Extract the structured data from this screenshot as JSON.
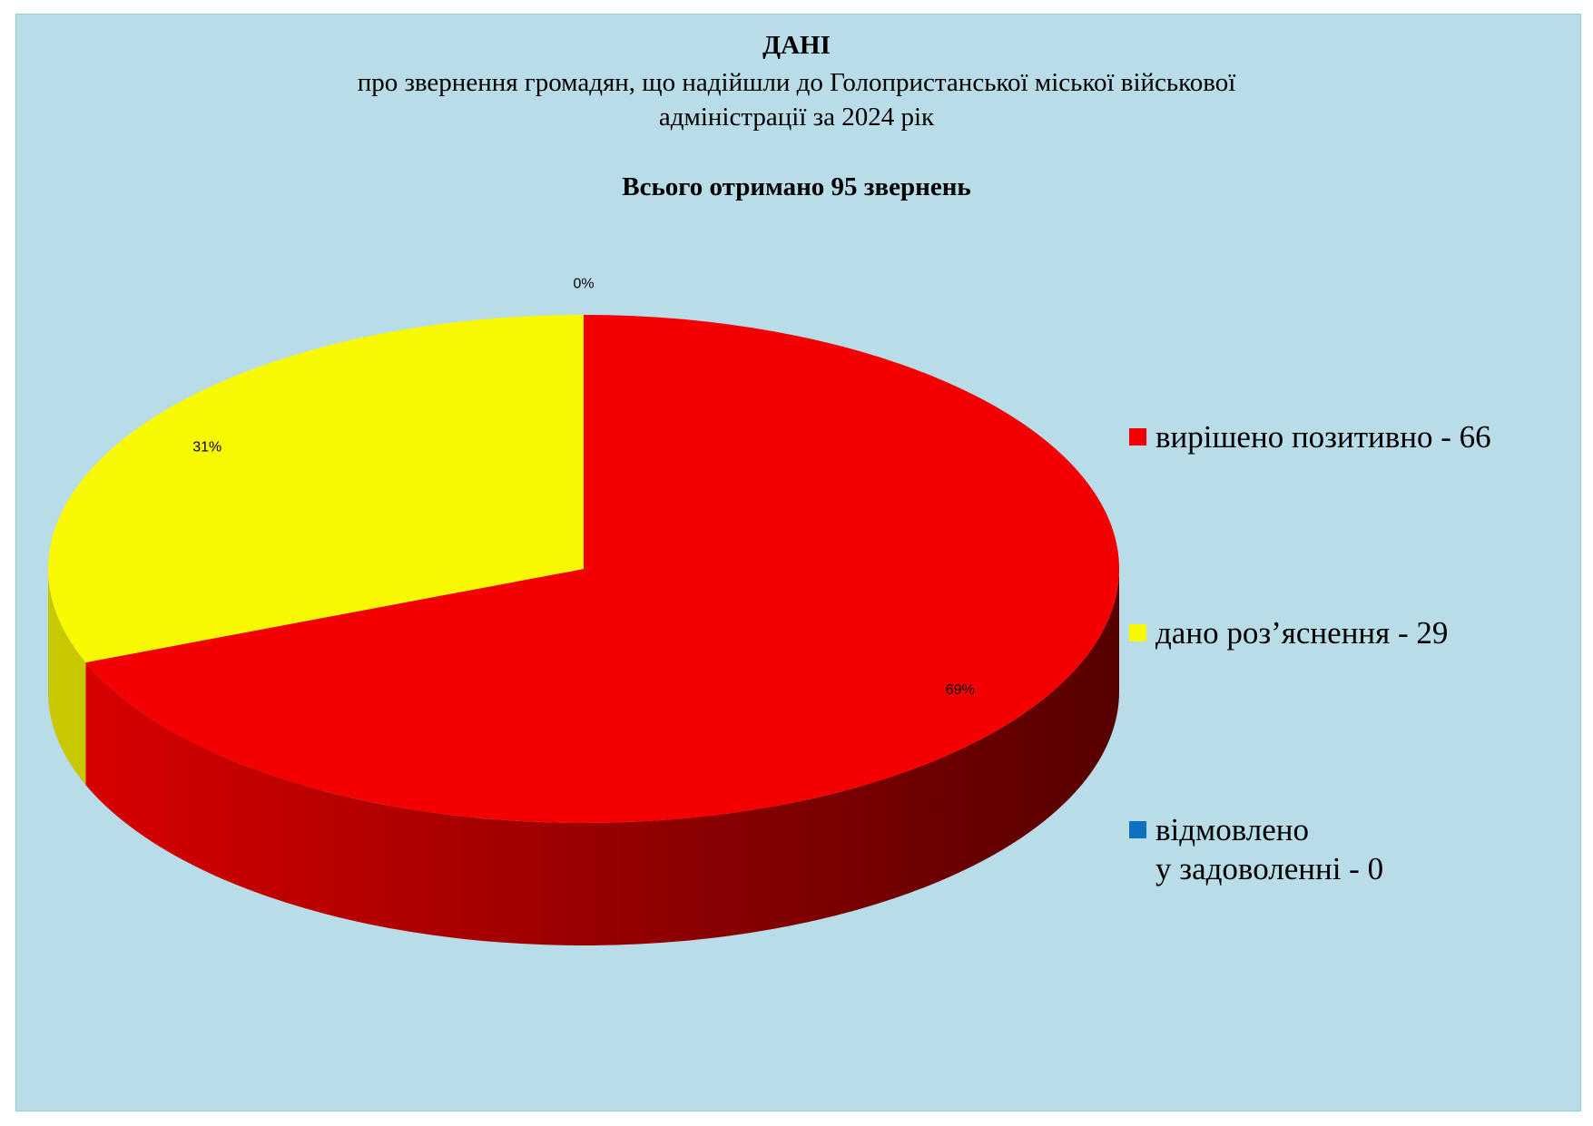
{
  "chart_data": {
    "type": "pie",
    "title": "ДАНІ",
    "subtitle": "про звернення громадян, що надійшли до Голопристанської міської військової\nадміністрації    за  2024 рік",
    "annotation": "Всього отримано  95 звернень",
    "categories": [
      "вирішено позитивно - 66",
      "дано роз’яснення - 29",
      "відмовлено\nу задоволенні - 0"
    ],
    "values": [
      69,
      31,
      0
    ],
    "value_labels": [
      "69%",
      "31%",
      "0%"
    ],
    "colors": [
      "#f50000",
      "#f8f800",
      "#1070c0"
    ],
    "legend": "right"
  }
}
